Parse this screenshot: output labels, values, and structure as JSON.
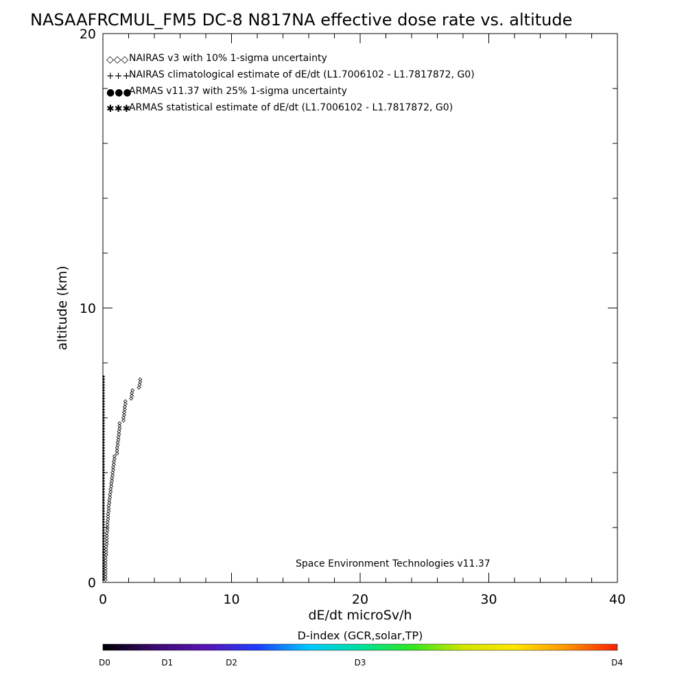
{
  "chart_data": {
    "type": "scatter",
    "title": "NASAAFRCMUL_FM5 DC-8   N817NA effective dose rate vs. altitude",
    "xlabel": "dE/dt microSv/h",
    "ylabel": "altitude (km)",
    "xlim": [
      0,
      40
    ],
    "ylim": [
      0,
      20
    ],
    "x_ticks": [
      0,
      10,
      20,
      30,
      40
    ],
    "x_tick_labels": [
      "0",
      "10",
      "20",
      "30",
      "40"
    ],
    "y_ticks": [
      0,
      10,
      20
    ],
    "y_tick_labels": [
      "0",
      "10",
      "20"
    ],
    "legend_position": "top-left",
    "legend": [
      {
        "symbol": "◇◇◇",
        "label": "NAIRAS v3 with 10% 1-sigma uncertainty",
        "color": "#000000"
      },
      {
        "symbol": "+++",
        "label": "NAIRAS climatological estimate of dE/dt (L1.7006102 - L1.7817872, G0)",
        "color": "#000000"
      },
      {
        "symbol": "●●●",
        "label": "ARMAS v11.37 with 25% 1-sigma uncertainty",
        "color": "#0a3cd8"
      },
      {
        "symbol": "✱✱✱",
        "label": "ARMAS statistical estimate of dE/dt (L1.7006102 - L1.7817872, G0)",
        "color": "#000000"
      }
    ],
    "annotation": "Space Environment Technologies v11.37",
    "series": [
      {
        "name": "NAIRAS v3 with 10% 1-sigma uncertainty",
        "marker": "diamond",
        "x": [
          0.2,
          0.2,
          0.2,
          0.2,
          0.2,
          0.2,
          0.2,
          0.2,
          0.2,
          0.25,
          0.25,
          0.25,
          0.25,
          0.3,
          0.3,
          0.3,
          0.3,
          0.3,
          0.35,
          0.35,
          0.35,
          0.35,
          0.4,
          0.4,
          0.4,
          0.45,
          0.45,
          0.45,
          0.5,
          0.5,
          0.55,
          0.55,
          0.6,
          0.6,
          0.65,
          0.65,
          0.7,
          0.7,
          0.75,
          0.75,
          0.8,
          0.8,
          0.85,
          0.85,
          0.9,
          0.9,
          1.1,
          1.1,
          1.1,
          1.15,
          1.15,
          1.2,
          1.2,
          1.25,
          1.25,
          1.3,
          1.3,
          1.3,
          1.6,
          1.6,
          1.65,
          1.65,
          1.7,
          1.7,
          1.75,
          1.75,
          2.2,
          2.25,
          2.25,
          2.3,
          2.8,
          2.85,
          2.9,
          2.9
        ],
        "y": [
          0.1,
          0.2,
          0.3,
          0.4,
          0.5,
          0.6,
          0.7,
          0.8,
          0.9,
          1.0,
          1.1,
          1.2,
          1.3,
          1.4,
          1.5,
          1.6,
          1.7,
          1.8,
          1.9,
          2.0,
          2.1,
          2.2,
          2.3,
          2.4,
          2.5,
          2.6,
          2.7,
          2.8,
          2.9,
          3.0,
          3.1,
          3.2,
          3.3,
          3.4,
          3.5,
          3.6,
          3.7,
          3.8,
          3.9,
          4.0,
          4.1,
          4.2,
          4.3,
          4.4,
          4.5,
          4.6,
          4.7,
          4.8,
          4.9,
          5.0,
          5.1,
          5.2,
          5.3,
          5.4,
          5.5,
          5.6,
          5.7,
          5.8,
          5.9,
          6.0,
          6.1,
          6.2,
          6.3,
          6.4,
          6.5,
          6.6,
          6.7,
          6.8,
          6.9,
          7.0,
          7.1,
          7.2,
          7.3,
          7.4
        ]
      },
      {
        "name": "ARMAS v11.37 with 25% 1-sigma uncertainty",
        "marker": "dot",
        "x": [
          0.05,
          0.05,
          0.05,
          0.05,
          0.05,
          0.05,
          0.05,
          0.05,
          0.05,
          0.05,
          0.05,
          0.05,
          0.05,
          0.05,
          0.05,
          0.05,
          0.05,
          0.05,
          0.05,
          0.05,
          0.05,
          0.05,
          0.05,
          0.05,
          0.05,
          0.05,
          0.05,
          0.05,
          0.05,
          0.05,
          0.05,
          0.05,
          0.05,
          0.05,
          0.05,
          0.05,
          0.05,
          0.05,
          0.05,
          0.05,
          0.05,
          0.05,
          0.05,
          0.05,
          0.05,
          0.05,
          0.05,
          0.05,
          0.05,
          0.05,
          0.05,
          0.05,
          0.05,
          0.05,
          0.05,
          0.05,
          0.05,
          0.05,
          0.05,
          0.05,
          0.05,
          0.05,
          0.05,
          0.05,
          0.05,
          0.05,
          0.05,
          0.05,
          0.05,
          0.05,
          0.05,
          0.05,
          0.05,
          0.05,
          0.05
        ],
        "y": [
          0.1,
          0.2,
          0.3,
          0.4,
          0.5,
          0.6,
          0.7,
          0.8,
          0.9,
          1.0,
          1.1,
          1.2,
          1.3,
          1.4,
          1.5,
          1.6,
          1.7,
          1.8,
          1.9,
          2.0,
          2.1,
          2.2,
          2.3,
          2.4,
          2.5,
          2.6,
          2.7,
          2.8,
          2.9,
          3.0,
          3.1,
          3.2,
          3.3,
          3.4,
          3.5,
          3.6,
          3.7,
          3.8,
          3.9,
          4.0,
          4.1,
          4.2,
          4.3,
          4.4,
          4.5,
          4.6,
          4.7,
          4.8,
          4.9,
          5.0,
          5.1,
          5.2,
          5.3,
          5.4,
          5.5,
          5.6,
          5.7,
          5.8,
          5.9,
          6.0,
          6.1,
          6.2,
          6.3,
          6.4,
          6.5,
          6.6,
          6.7,
          6.8,
          6.9,
          7.0,
          7.1,
          7.2,
          7.3,
          7.4,
          7.5
        ]
      }
    ],
    "colorbar": {
      "title": "D-index (GCR,solar,TP)",
      "tick_labels": [
        "D0",
        "D1",
        "D2",
        "D3",
        "D4"
      ],
      "tick_positions": [
        0,
        0.125,
        0.25,
        0.5,
        1.0
      ],
      "colors": [
        "#000000",
        "#3a0a6e",
        "#5a14b4",
        "#1e3cff",
        "#00c8ff",
        "#00e0a0",
        "#2ce81e",
        "#d2e600",
        "#ffe600",
        "#ff9600",
        "#ff1e00"
      ]
    }
  }
}
